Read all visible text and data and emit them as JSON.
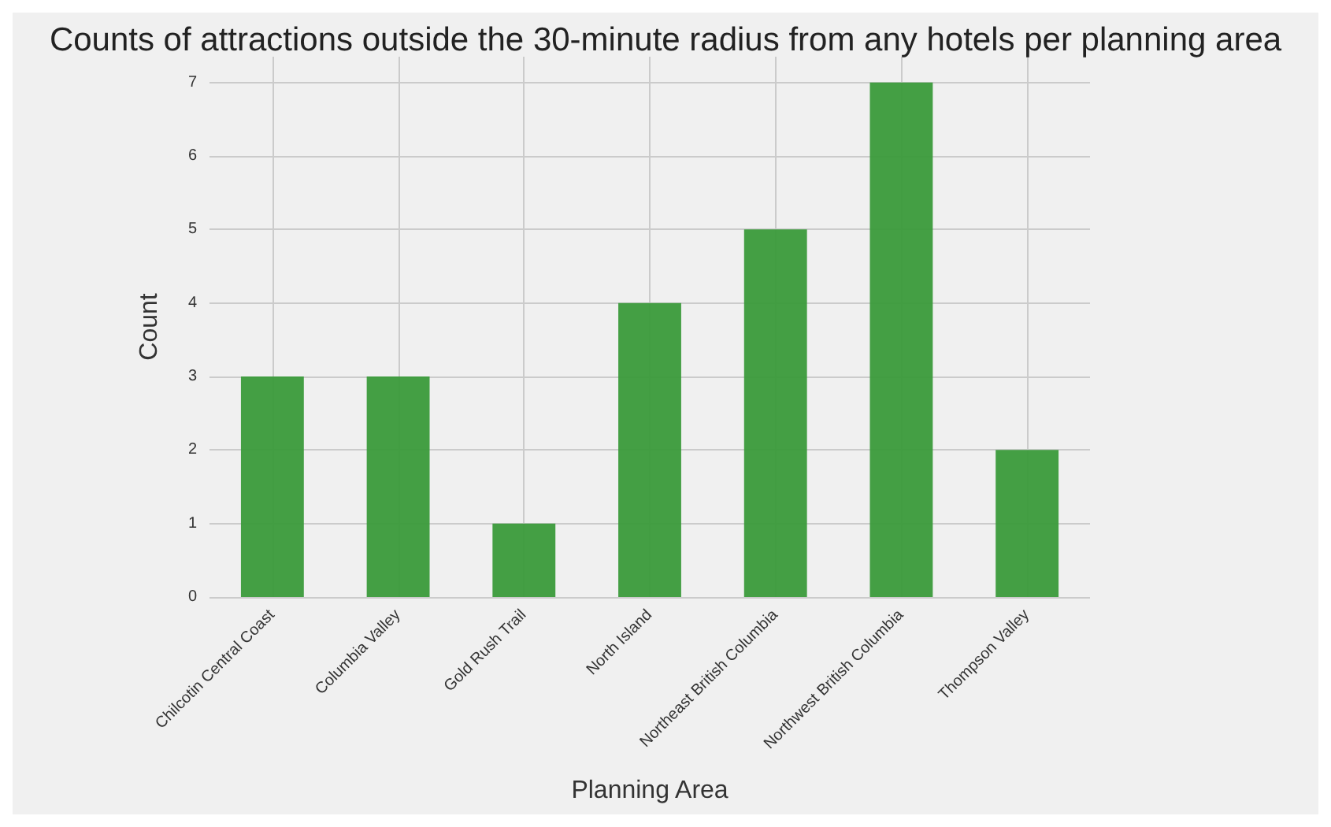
{
  "chart_data": {
    "type": "bar",
    "title": "Counts of attractions outside the 30-minute radius from any hotels per planning area",
    "xlabel": "Planning Area",
    "ylabel": "Count",
    "categories": [
      "Chilcotin Central Coast",
      "Columbia Valley",
      "Gold Rush Trail",
      "North Island",
      "Northeast British Columbia",
      "Northwest British Columbia",
      "Thompson Valley"
    ],
    "values": [
      3,
      3,
      1,
      4,
      5,
      7,
      2
    ],
    "color": "#3a9a3a",
    "ylim": [
      0,
      7.35
    ],
    "yticks": [
      0,
      1,
      2,
      3,
      4,
      5,
      6,
      7
    ],
    "grid": true
  }
}
